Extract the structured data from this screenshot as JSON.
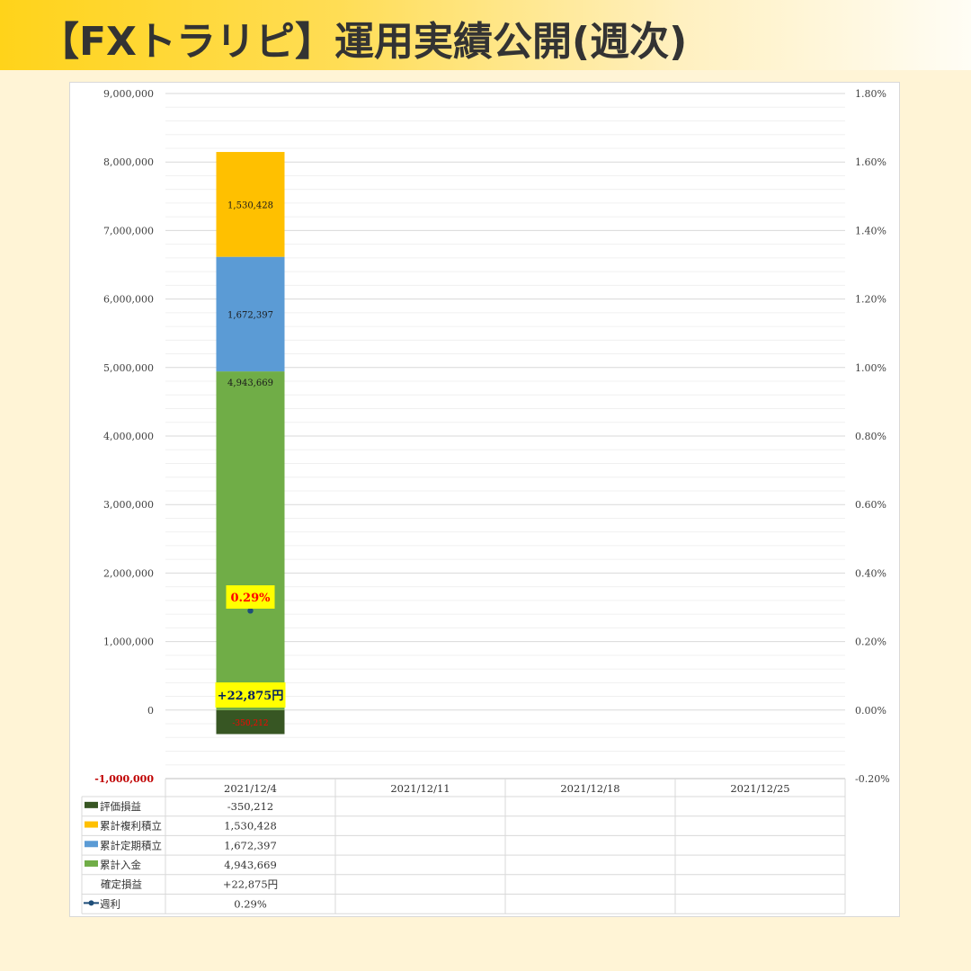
{
  "page": {
    "title": "【FXトラリピ】運用実績公開(週次)"
  },
  "colors": {
    "hyoka": "#375623",
    "fukuri": "#ffc000",
    "teiki": "#5b9bd5",
    "nyukin": "#70ad47",
    "weekly": "#1f4e79",
    "highlight": "#ffff00",
    "loss_text": "#ff0000",
    "gain_text": "#002060"
  },
  "chart_data": {
    "type": "bar",
    "stacked": true,
    "categories": [
      "2021/12/4",
      "2021/12/11",
      "2021/12/18",
      "2021/12/25"
    ],
    "series": [
      {
        "name": "評価損益",
        "key": "hyoka",
        "values": [
          -350212,
          null,
          null,
          null
        ],
        "labels": [
          "-350,212",
          "",
          "",
          ""
        ]
      },
      {
        "name": "累計入金",
        "key": "nyukin",
        "values": [
          4943669,
          null,
          null,
          null
        ],
        "labels": [
          "4,943,669",
          "",
          "",
          ""
        ]
      },
      {
        "name": "累計定期積立",
        "key": "teiki",
        "values": [
          1672397,
          null,
          null,
          null
        ],
        "labels": [
          "1,672,397",
          "",
          "",
          ""
        ]
      },
      {
        "name": "累計複利積立",
        "key": "fukuri",
        "values": [
          1530428,
          null,
          null,
          null
        ],
        "labels": [
          "1,530,428",
          "",
          "",
          ""
        ]
      }
    ],
    "line_series": {
      "name": "週利",
      "axis": "right",
      "values": [
        0.29,
        null,
        null,
        null
      ],
      "labels": [
        "0.29%",
        "",
        "",
        ""
      ]
    },
    "text_row": {
      "name": "確定損益",
      "values": [
        "+22,875円",
        "",
        "",
        ""
      ]
    },
    "bar_callouts": {
      "weekly": "0.29%",
      "profit": "+22,875円",
      "loss": "-350,212"
    },
    "y_left": {
      "lim": [
        -1000000,
        9000000
      ],
      "ticks": [
        9000000,
        8000000,
        7000000,
        6000000,
        5000000,
        4000000,
        3000000,
        2000000,
        1000000,
        0,
        -1000000
      ],
      "tick_labels": [
        "9,000,000",
        "8,000,000",
        "7,000,000",
        "6,000,000",
        "5,000,000",
        "4,000,000",
        "3,000,000",
        "2,000,000",
        "1,000,000",
        "0",
        "-1,000,000"
      ]
    },
    "y_right": {
      "lim": [
        -0.2,
        1.8
      ],
      "ticks": [
        1.8,
        1.6,
        1.4,
        1.2,
        1.0,
        0.8,
        0.6,
        0.4,
        0.2,
        0.0,
        -0.2
      ],
      "tick_labels": [
        "1.80%",
        "1.60%",
        "1.40%",
        "1.20%",
        "1.00%",
        "0.80%",
        "0.60%",
        "0.40%",
        "0.20%",
        "0.00%",
        "-0.20%"
      ]
    },
    "grid": true,
    "legend": "data-table",
    "table_rows": [
      {
        "key": "hyoka",
        "label": "評価損益",
        "marker": "box",
        "cells": [
          "-350,212",
          "",
          "",
          ""
        ]
      },
      {
        "key": "fukuri",
        "label": "累計複利積立",
        "marker": "box",
        "cells": [
          "1,530,428",
          "",
          "",
          ""
        ]
      },
      {
        "key": "teiki",
        "label": "累計定期積立",
        "marker": "box",
        "cells": [
          "1,672,397",
          "",
          "",
          ""
        ]
      },
      {
        "key": "nyukin",
        "label": "累計入金",
        "marker": "box",
        "cells": [
          "4,943,669",
          "",
          "",
          ""
        ]
      },
      {
        "key": "kakutei",
        "label": "確定損益",
        "marker": "none",
        "cells": [
          "+22,875円",
          "",
          "",
          ""
        ]
      },
      {
        "key": "weekly",
        "label": "週利",
        "marker": "line",
        "cells": [
          "0.29%",
          "",
          "",
          ""
        ]
      }
    ]
  }
}
